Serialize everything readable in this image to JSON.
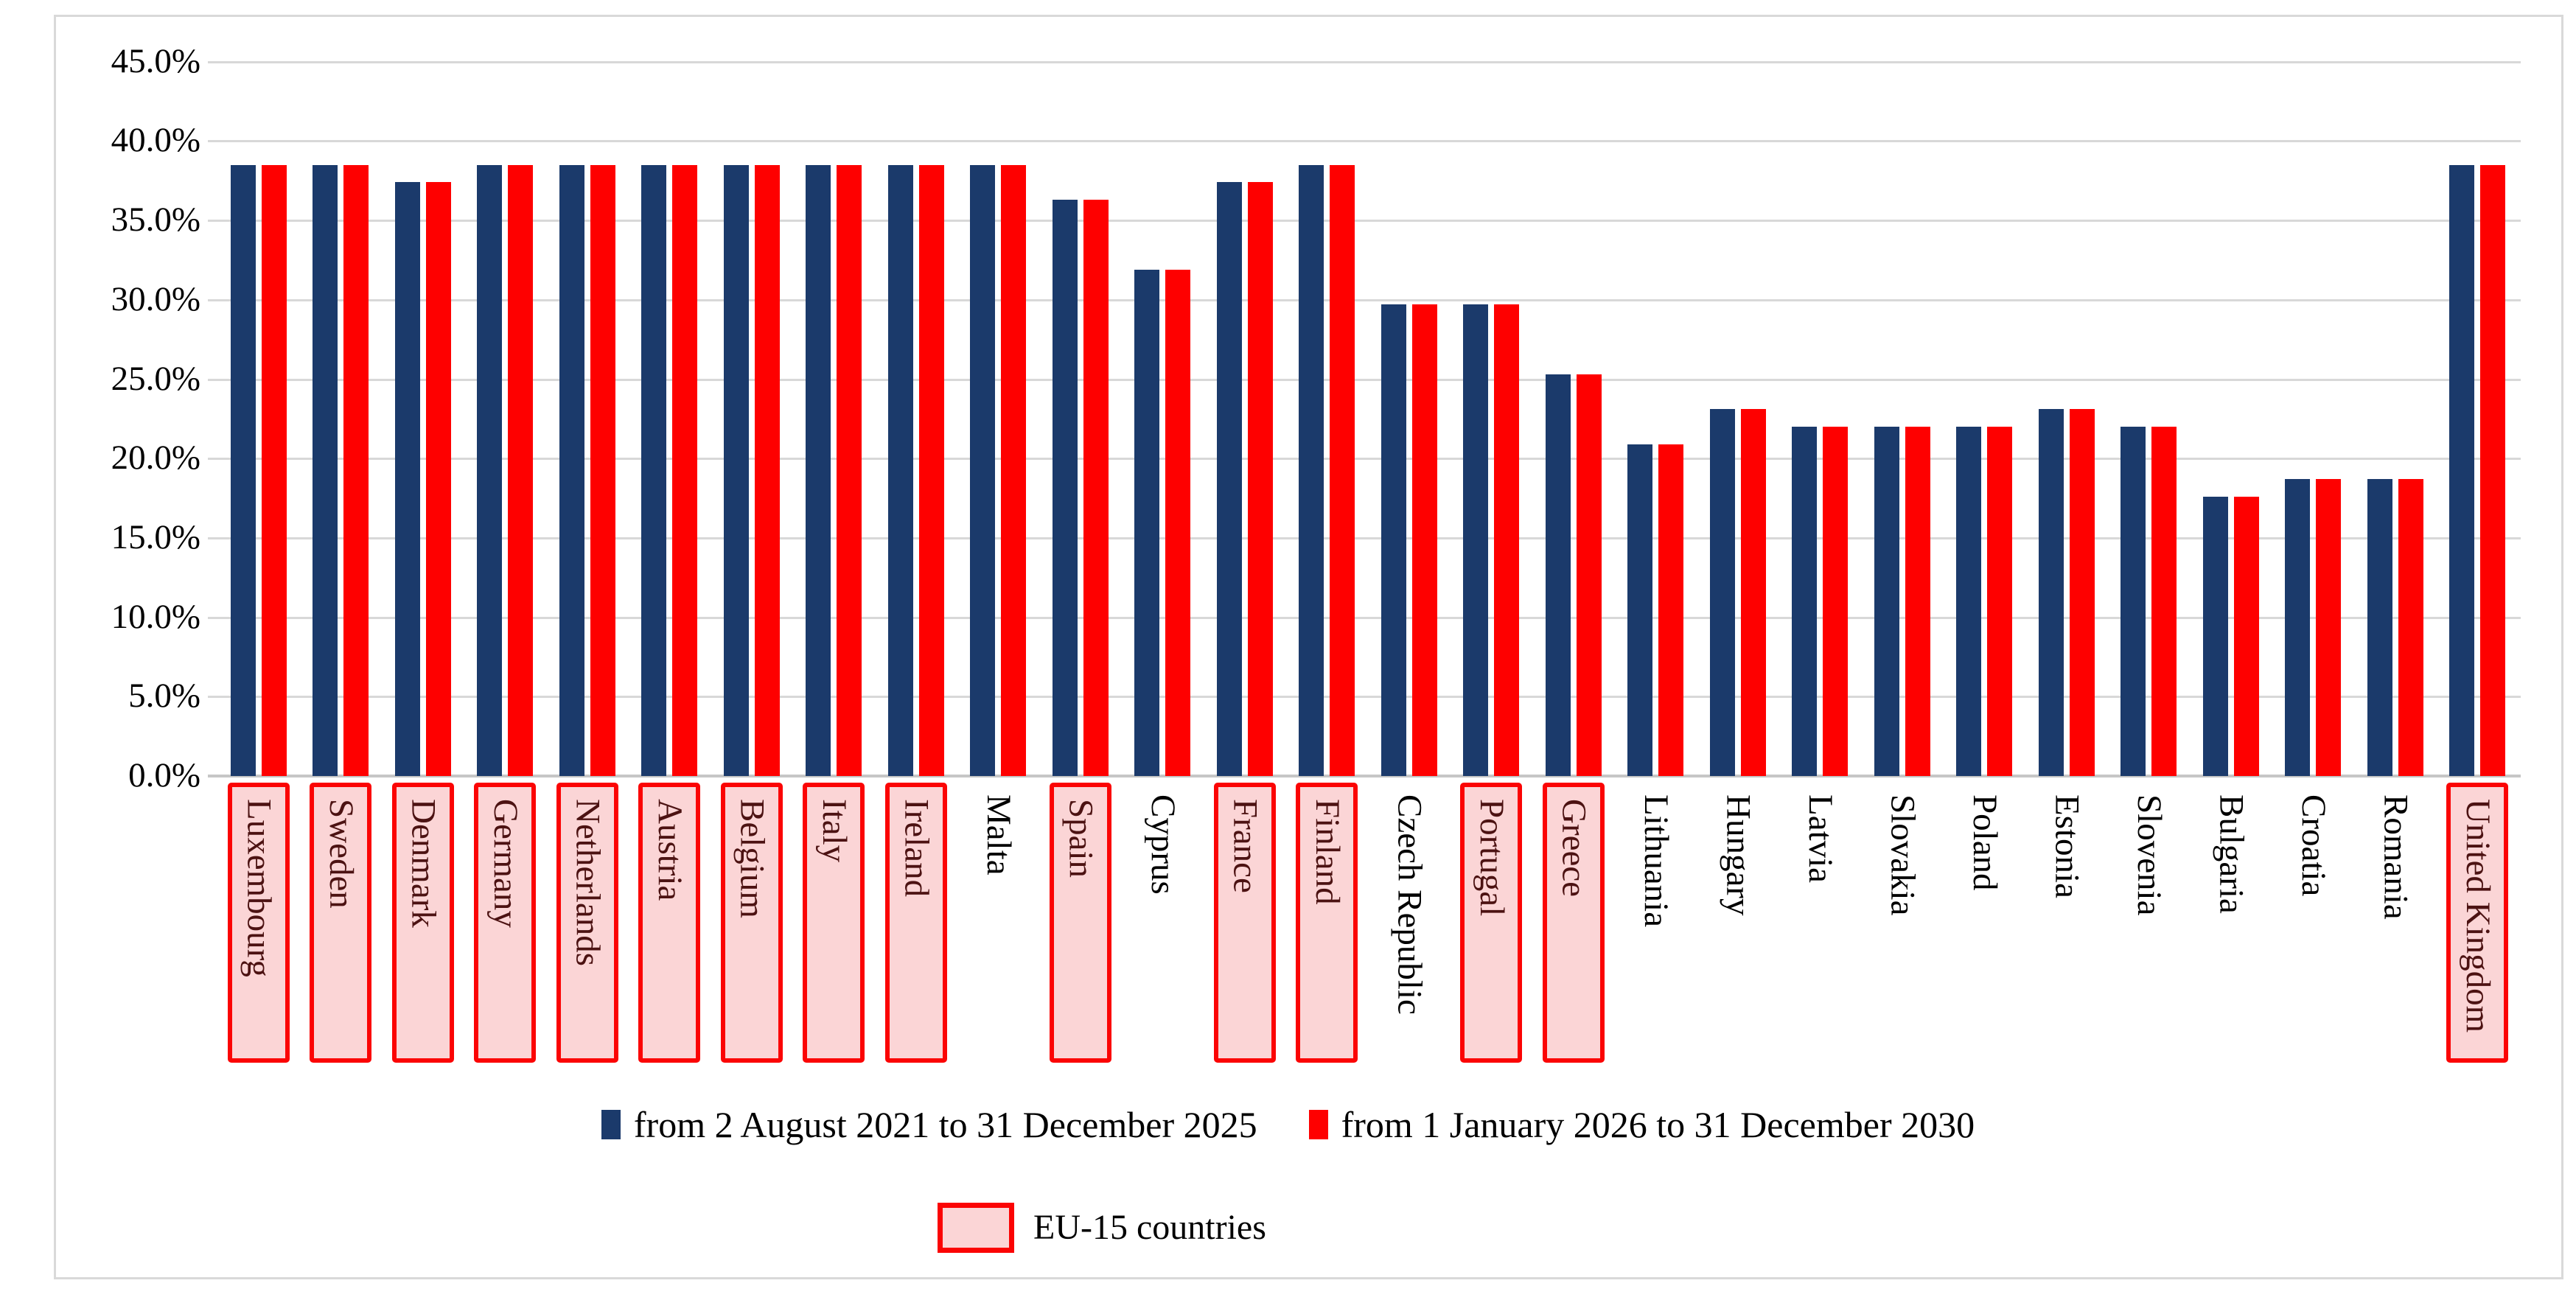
{
  "figure": {
    "background": "#ffffff",
    "border_color": "#d9d9d9"
  },
  "y_axis": {
    "tick_labels": [
      "45.0%",
      "40.0%",
      "35.0%",
      "30.0%",
      "25.0%",
      "20.0%",
      "15.0%",
      "10.0%",
      "5.0%",
      "0.0%"
    ],
    "min": 0,
    "max": 45,
    "step": 5,
    "format": "percent_one_decimal"
  },
  "legend": {
    "series": [
      {
        "label": "from 2 August 2021 to 31 December 2025",
        "color": "#1b3a6b",
        "marker": "navy-square"
      },
      {
        "label": "from 1 January 2026 to 31 December 2030",
        "color": "#fe0000",
        "marker": "red-square"
      }
    ],
    "eu15": {
      "label": "EU-15 countries",
      "fill": "#fbd5d6",
      "border": "#fb0404"
    }
  },
  "chart_data": {
    "type": "bar",
    "title": "",
    "xlabel": "",
    "ylabel": "",
    "ylim": [
      0,
      45
    ],
    "grid": "horizontal",
    "legend_position": "bottom",
    "categories": [
      "Luxembourg",
      "Sweden",
      "Denmark",
      "Germany",
      "Netherlands",
      "Austria",
      "Belgium",
      "Italy",
      "Ireland",
      "Malta",
      "Spain",
      "Cyprus",
      "France",
      "Finland",
      "Czech Republic",
      "Portugal",
      "Greece",
      "Lithuania",
      "Hungary",
      "Latvia",
      "Slovakia",
      "Poland",
      "Estonia",
      "Slovenia",
      "Bulgaria",
      "Croatia",
      "Romania",
      "United Kingdom"
    ],
    "series": [
      {
        "name": "from 2 August 2021 to 31 December 2025",
        "color": "#1b3a6b",
        "values": [
          38.5,
          38.5,
          37.4,
          38.5,
          38.5,
          38.5,
          38.5,
          38.5,
          38.5,
          38.5,
          36.3,
          31.9,
          37.4,
          38.5,
          29.7,
          29.7,
          25.3,
          20.9,
          23.1,
          22.0,
          22.0,
          22.0,
          23.1,
          22.0,
          17.6,
          18.7,
          18.7,
          38.5
        ]
      },
      {
        "name": "from 1 January 2026 to 31 December 2030",
        "color": "#fe0000",
        "values": [
          38.5,
          38.5,
          37.4,
          38.5,
          38.5,
          38.5,
          38.5,
          38.5,
          38.5,
          38.5,
          36.3,
          31.9,
          37.4,
          38.5,
          29.7,
          29.7,
          25.3,
          20.9,
          23.1,
          22.0,
          22.0,
          22.0,
          23.1,
          22.0,
          17.6,
          18.7,
          18.7,
          38.5
        ]
      }
    ],
    "eu15_members": [
      "Luxembourg",
      "Sweden",
      "Denmark",
      "Germany",
      "Netherlands",
      "Austria",
      "Belgium",
      "Italy",
      "Ireland",
      "Spain",
      "France",
      "Finland",
      "Portugal",
      "Greece",
      "United Kingdom"
    ],
    "category_label_style": {
      "rotated": true,
      "eu15_boxed": true,
      "eu15_text_color": "#4c1212",
      "plain_text_color": "#000000"
    }
  }
}
